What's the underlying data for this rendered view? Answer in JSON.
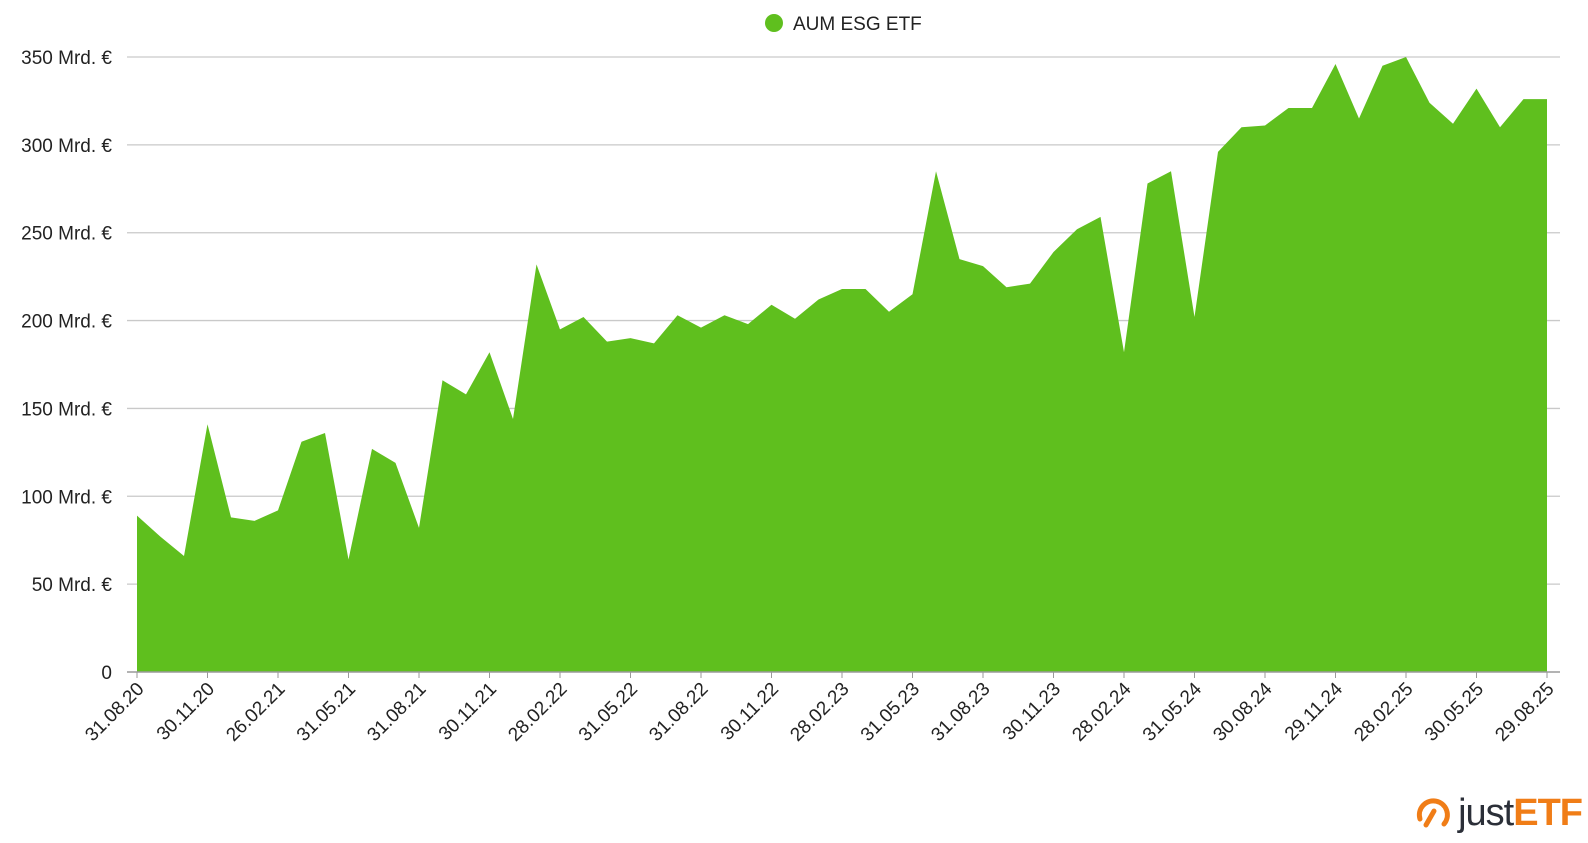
{
  "chart_data": {
    "type": "area",
    "legend": {
      "label": "AUM ESG ETF",
      "position": "top-center"
    },
    "ylim": [
      0,
      350
    ],
    "y_ticks": [
      0,
      50,
      100,
      150,
      200,
      250,
      300,
      350
    ],
    "y_tick_labels": [
      "0",
      "50 Mrd. €",
      "100 Mrd. €",
      "150 Mrd. €",
      "200 Mrd. €",
      "250 Mrd. €",
      "300 Mrd. €",
      "350 Mrd. €"
    ],
    "x_tick_labels": [
      "31.08.20",
      "30.11.20",
      "26.02.21",
      "31.05.21",
      "31.08.21",
      "30.11.21",
      "28.02.22",
      "31.05.22",
      "31.08.22",
      "30.11.22",
      "28.02.23",
      "31.05.23",
      "31.08.23",
      "30.11.23",
      "28.02.24",
      "31.05.24",
      "30.08.24",
      "29.11.24",
      "28.02.25",
      "30.05.25",
      "29.08.25"
    ],
    "grid": true,
    "color": "#5fbf1e",
    "series": [
      {
        "name": "AUM ESG ETF",
        "values": [
          89,
          77,
          66,
          141,
          88,
          86,
          92,
          131,
          136,
          64,
          127,
          119,
          82,
          166,
          158,
          182,
          144,
          232,
          195,
          202,
          188,
          190,
          187,
          203,
          196,
          203,
          198,
          209,
          201,
          212,
          218,
          218,
          205,
          215,
          285,
          235,
          231,
          219,
          221,
          239,
          252,
          259,
          182,
          278,
          285,
          202,
          296,
          310,
          311,
          321,
          321,
          346,
          315,
          345,
          350,
          324,
          312,
          332,
          310,
          326,
          326
        ]
      }
    ]
  },
  "brand": {
    "prefix": "just",
    "suffix": "ETF",
    "icon": "justetf-logo-icon",
    "accent": "#f07d17"
  }
}
